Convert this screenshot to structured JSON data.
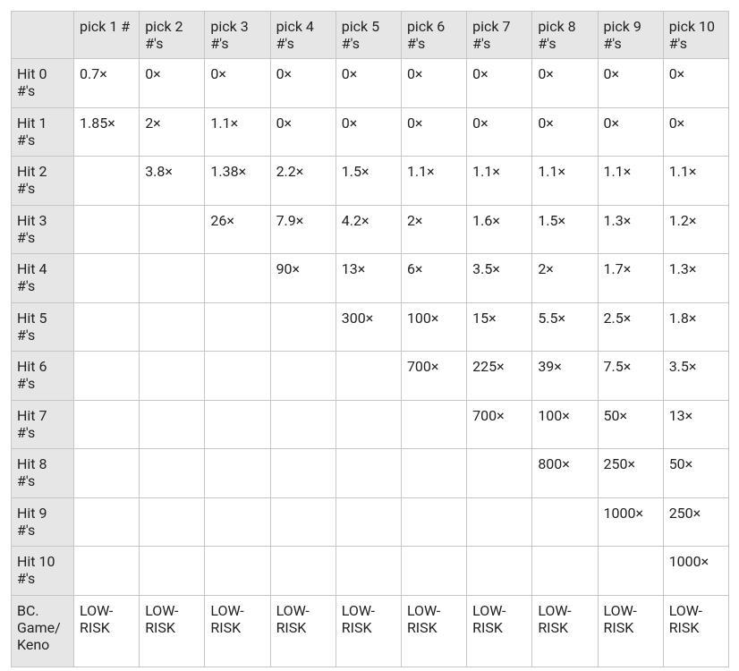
{
  "table": {
    "header": [
      "pick 1 #",
      "pick 2 #'s",
      "pick 3 #'s",
      "pick 4 #'s",
      "pick 5 #'s",
      "pick 6 #'s",
      "pick 7 #'s",
      "pick 8 #'s",
      "pick 9 #'s",
      "pick 10 #'s"
    ],
    "rows": [
      {
        "label": "Hit 0 #'s",
        "cells": [
          "0.7×",
          "0×",
          "0×",
          "0×",
          "0×",
          "0×",
          "0×",
          "0×",
          "0×",
          "0×"
        ]
      },
      {
        "label": "Hit 1 #'s",
        "cells": [
          "1.85×",
          "2×",
          "1.1×",
          "0×",
          "0×",
          "0×",
          "0×",
          "0×",
          "0×",
          "0×"
        ]
      },
      {
        "label": "Hit 2 #'s",
        "cells": [
          null,
          "3.8×",
          "1.38×",
          "2.2×",
          "1.5×",
          "1.1×",
          "1.1×",
          "1.1×",
          "1.1×",
          "1.1×"
        ]
      },
      {
        "label": "Hit 3 #'s",
        "cells": [
          null,
          null,
          "26×",
          "7.9×",
          "4.2×",
          "2×",
          "1.6×",
          "1.5×",
          "1.3×",
          "1.2×"
        ]
      },
      {
        "label": "Hit 4 #'s",
        "cells": [
          null,
          null,
          null,
          "90×",
          "13×",
          "6×",
          "3.5×",
          "2×",
          "1.7×",
          "1.3×"
        ]
      },
      {
        "label": "Hit 5 #'s",
        "cells": [
          null,
          null,
          null,
          null,
          "300×",
          "100×",
          "15×",
          "5.5×",
          "2.5×",
          "1.8×"
        ]
      },
      {
        "label": "Hit 6 #'s",
        "cells": [
          null,
          null,
          null,
          null,
          null,
          "700×",
          "225×",
          "39×",
          "7.5×",
          "3.5×"
        ]
      },
      {
        "label": "Hit 7 #'s",
        "cells": [
          null,
          null,
          null,
          null,
          null,
          null,
          "700×",
          "100×",
          "50×",
          "13×"
        ]
      },
      {
        "label": "Hit 8 #'s",
        "cells": [
          null,
          null,
          null,
          null,
          null,
          null,
          null,
          "800×",
          "250×",
          "50×"
        ]
      },
      {
        "label": "Hit 9 #'s",
        "cells": [
          null,
          null,
          null,
          null,
          null,
          null,
          null,
          null,
          "1000×",
          "250×"
        ]
      },
      {
        "label": "Hit 10 #'s",
        "cells": [
          null,
          null,
          null,
          null,
          null,
          null,
          null,
          null,
          null,
          "1000×"
        ]
      },
      {
        "label": "BC. Game/ Keno",
        "cells": [
          "LOW-RISK",
          "LOW-RISK",
          "LOW-RISK",
          "LOW-RISK",
          "LOW-RISK",
          "LOW-RISK",
          "LOW-RISK",
          "LOW-RISK",
          "LOW-RISK",
          "LOW-RISK"
        ]
      }
    ]
  }
}
